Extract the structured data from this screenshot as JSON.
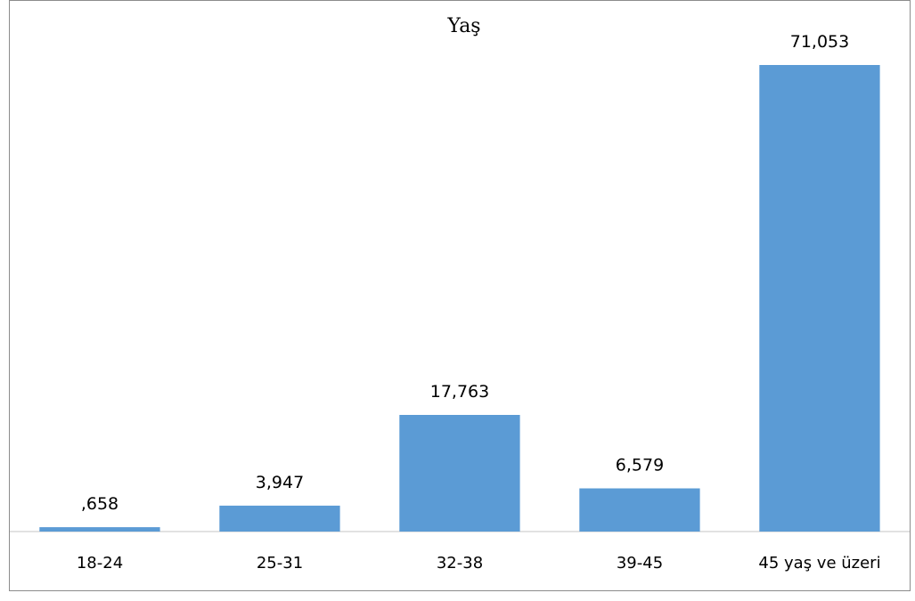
{
  "chart_data": {
    "type": "bar",
    "title": "Yaş",
    "xlabel": "",
    "ylabel": "",
    "categories": [
      "18-24",
      "25-31",
      "32-38",
      "39-45",
      "45 yaş ve üzeri"
    ],
    "values": [
      0.658,
      3.947,
      17.763,
      6.579,
      71.053
    ],
    "data_labels": [
      ",658",
      "3,947",
      "17,763",
      "6,579",
      "71,053"
    ],
    "ylim": [
      0,
      80
    ],
    "grid": false,
    "legend": "none",
    "bar_color": "#5b9bd5",
    "axis_color": "#d9d9d9"
  }
}
